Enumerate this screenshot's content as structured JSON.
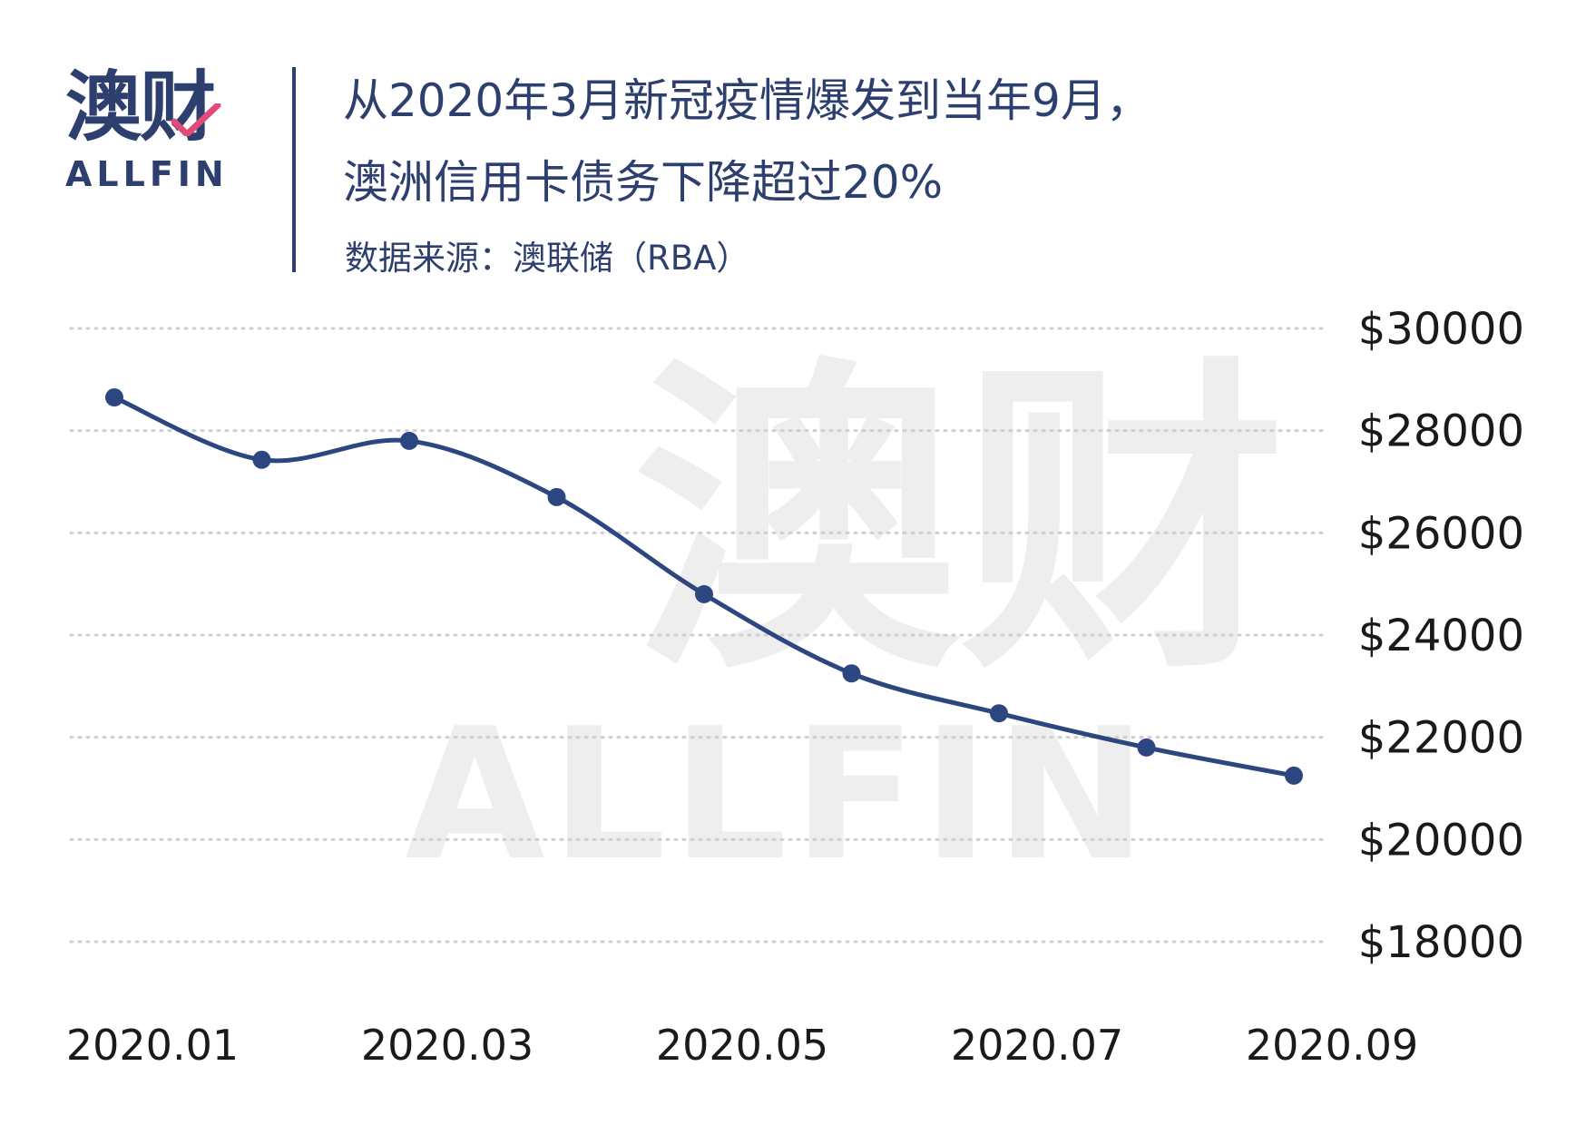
{
  "logo": {
    "cn": "澳财",
    "en": "ALLFIN"
  },
  "title_line1": "从2020年3月新冠疫情爆发到当年9月，",
  "title_line2": "澳洲信用卡债务下降超过20%",
  "source": "数据来源：澳联储（RBA）",
  "watermark": {
    "cn": "澳财",
    "en": "ALLFIN"
  },
  "colors": {
    "brand": "#2c3f6e",
    "line": "#2c4680",
    "grid": "#cfcfcf",
    "watermark": "#eeeeee"
  },
  "chart_data": {
    "type": "line",
    "x": [
      "2020.01",
      "2020.02",
      "2020.03",
      "2020.04",
      "2020.05",
      "2020.06",
      "2020.07",
      "2020.08",
      "2020.09"
    ],
    "xtick_labels": [
      "2020.01",
      "2020.03",
      "2020.05",
      "2020.07",
      "2020.09"
    ],
    "series": [
      {
        "values": [
          28650,
          27430,
          27800,
          26700,
          24800,
          23250,
          22470,
          21800,
          21250
        ]
      }
    ],
    "ylim": [
      18000,
      30000
    ],
    "yticks": [
      30000,
      28000,
      26000,
      24000,
      22000,
      20000,
      18000
    ],
    "ytick_labels": [
      "$30000",
      "$28000",
      "$26000",
      "$24000",
      "$22000",
      "$20000",
      "$18000"
    ],
    "grid": "horizontal dotted",
    "y_axis_position": "right",
    "legend": "none"
  }
}
